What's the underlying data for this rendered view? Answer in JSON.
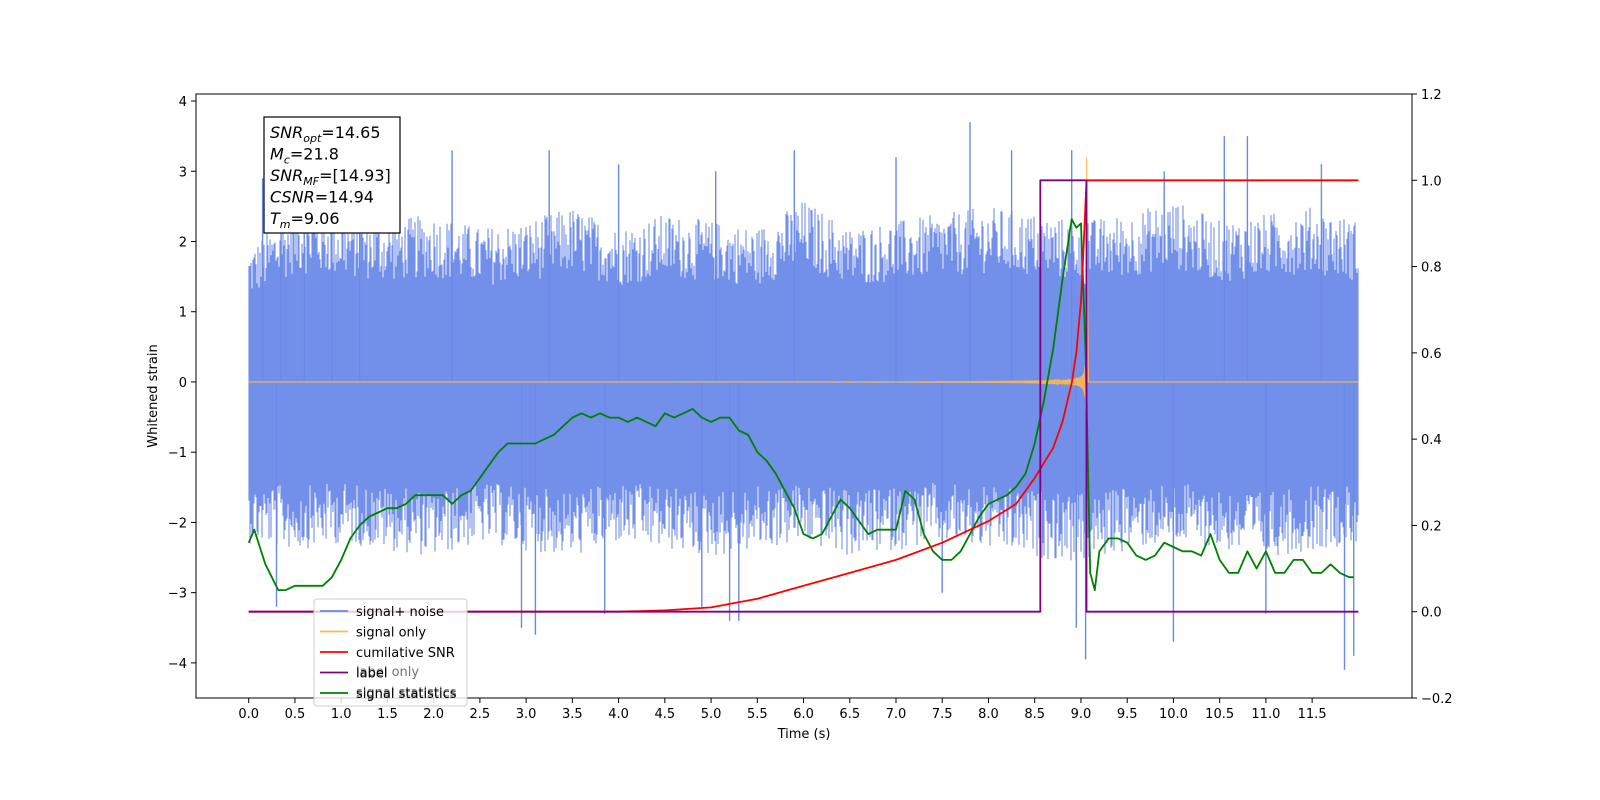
{
  "chart_data": {
    "type": "line",
    "xlabel": "Time (s)",
    "ylabel": "Whitened strain",
    "xlim": [
      -0.57,
      12.58
    ],
    "ylim": [
      -4.5,
      4.1
    ],
    "y2lim": [
      -0.2,
      1.2
    ],
    "x_ticks": [
      0.0,
      0.5,
      1.0,
      1.5,
      2.0,
      2.5,
      3.0,
      3.5,
      4.0,
      4.5,
      5.0,
      5.5,
      6.0,
      6.5,
      7.0,
      7.5,
      8.0,
      8.5,
      9.0,
      9.5,
      10.0,
      10.5,
      11.0,
      11.5
    ],
    "x_tick_labels": [
      "0.0",
      "0.5",
      "1.0",
      "1.5",
      "2.0",
      "2.5",
      "3.0",
      "3.5",
      "4.0",
      "4.5",
      "5.0",
      "5.5",
      "6.0",
      "6.5",
      "7.0",
      "7.5",
      "8.0",
      "8.5",
      "9.0",
      "9.5",
      "10.0",
      "10.5",
      "11.0",
      "11.5"
    ],
    "y_ticks": [
      4,
      3,
      2,
      1,
      0,
      -1,
      -2,
      -3,
      -4
    ],
    "y_tick_labels": [
      "4",
      "3",
      "2",
      "1",
      "0",
      "−1",
      "−2",
      "−3",
      "−4"
    ],
    "y2_ticks": [
      1.2,
      1.0,
      0.8,
      0.6,
      0.4,
      0.2,
      0.0,
      -0.2
    ],
    "y2_tick_labels": [
      "1.2",
      "1.0",
      "0.8",
      "0.6",
      "0.4",
      "0.2",
      "0.0",
      "−0.2"
    ],
    "grid": false,
    "legend_position": "lower-left",
    "legend": [
      {
        "label": "signal+ noise",
        "color": "#6a89e8"
      },
      {
        "label": "signal only",
        "color": "#ffb74d"
      },
      {
        "label": "cumilative SNR",
        "color": "#ff0000"
      },
      {
        "label": "label",
        "color": "#800080"
      },
      {
        "label": "signal statistics",
        "color": "#008000"
      }
    ],
    "legend_ghost_text": [
      "label only",
      "signal statistics"
    ],
    "annotation": {
      "lines": [
        {
          "base": "SNR",
          "sub": "opt",
          "value": "=14.65"
        },
        {
          "base": "M",
          "sub": "c",
          "value": "=21.8"
        },
        {
          "base": "SNR",
          "sub": "MF",
          "value": "=[14.93]"
        },
        {
          "base": "CSNR",
          "sub": "",
          "value": "=14.94"
        },
        {
          "base": "T",
          "sub": "m",
          "value": "=9.06"
        }
      ]
    },
    "series": [
      {
        "name": "signal+ noise",
        "axis": "left",
        "color": "#6a89e8",
        "x_range": [
          0.0,
          12.0
        ],
        "envelope_upper": [
          1.9,
          2.5,
          2.4,
          2.3,
          2.4,
          2.2,
          2.3,
          2.5,
          2.2,
          2.4,
          2.3,
          2.2,
          2.6,
          2.2,
          2.3,
          2.4,
          2.5,
          2.4,
          2.3,
          2.4,
          2.6,
          2.3,
          2.4,
          2.5,
          2.3
        ],
        "envelope_lower": [
          -2.3,
          -2.4,
          -2.3,
          -2.4,
          -2.5,
          -2.3,
          -2.4,
          -2.5,
          -2.3,
          -2.4,
          -2.5,
          -2.4,
          -2.3,
          -2.5,
          -2.4,
          -2.3,
          -2.4,
          -2.5,
          -2.6,
          -2.4,
          -2.3,
          -2.4,
          -2.5,
          -2.4,
          -2.3
        ],
        "spikes": [
          {
            "x": 0.15,
            "y": 2.9
          },
          {
            "x": 0.35,
            "y": 2.9
          },
          {
            "x": 0.6,
            "y": 3.0
          },
          {
            "x": 0.9,
            "y": 2.9
          },
          {
            "x": 1.2,
            "y": 3.1
          },
          {
            "x": 2.2,
            "y": 3.3
          },
          {
            "x": 3.25,
            "y": 3.3
          },
          {
            "x": 4.0,
            "y": 3.1
          },
          {
            "x": 5.05,
            "y": 3.0
          },
          {
            "x": 5.9,
            "y": 3.3
          },
          {
            "x": 7.0,
            "y": 3.2
          },
          {
            "x": 7.8,
            "y": 3.7
          },
          {
            "x": 8.25,
            "y": 3.3
          },
          {
            "x": 8.9,
            "y": 3.3
          },
          {
            "x": 9.9,
            "y": 3.0
          },
          {
            "x": 10.55,
            "y": 3.5
          },
          {
            "x": 10.8,
            "y": 3.5
          },
          {
            "x": 11.6,
            "y": 3.1
          },
          {
            "x": 0.3,
            "y": -3.2
          },
          {
            "x": 2.95,
            "y": -3.5
          },
          {
            "x": 3.1,
            "y": -3.6
          },
          {
            "x": 3.85,
            "y": -3.3
          },
          {
            "x": 4.9,
            "y": -3.2
          },
          {
            "x": 5.2,
            "y": -3.4
          },
          {
            "x": 5.3,
            "y": -3.4
          },
          {
            "x": 7.5,
            "y": -3.0
          },
          {
            "x": 8.95,
            "y": -3.5
          },
          {
            "x": 9.05,
            "y": -3.95
          },
          {
            "x": 10.0,
            "y": -3.7
          },
          {
            "x": 11.0,
            "y": -3.3
          },
          {
            "x": 11.85,
            "y": -4.1
          },
          {
            "x": 11.95,
            "y": -3.9
          }
        ]
      },
      {
        "name": "signal only",
        "axis": "left",
        "color": "#ffb74d",
        "x_range": [
          0.0,
          12.0
        ],
        "chirp_start": 4.5,
        "chirp_merger": 9.06,
        "chirp_peak": 3.2
      },
      {
        "name": "cumilative SNR",
        "axis": "right",
        "color": "#ff0000",
        "x": [
          0.0,
          4.0,
          4.5,
          5.0,
          5.5,
          6.0,
          6.5,
          7.0,
          7.5,
          8.0,
          8.3,
          8.5,
          8.7,
          8.8,
          8.9,
          8.95,
          9.0,
          9.03,
          9.06,
          12.0
        ],
        "y": [
          0.0,
          0.0,
          0.003,
          0.01,
          0.03,
          0.06,
          0.09,
          0.12,
          0.16,
          0.21,
          0.25,
          0.31,
          0.38,
          0.44,
          0.53,
          0.6,
          0.72,
          0.85,
          1.0,
          1.0
        ]
      },
      {
        "name": "label",
        "axis": "right",
        "color": "#800080",
        "x": [
          0.0,
          8.56,
          8.56,
          9.06,
          9.06,
          12.0
        ],
        "y": [
          0.0,
          0.0,
          1.0,
          1.0,
          0.0,
          0.0
        ]
      },
      {
        "name": "signal statistics",
        "axis": "right",
        "color": "#008000",
        "x": [
          0.0,
          0.06,
          0.12,
          0.18,
          0.25,
          0.32,
          0.4,
          0.5,
          0.6,
          0.7,
          0.8,
          0.9,
          1.0,
          1.1,
          1.2,
          1.3,
          1.4,
          1.5,
          1.6,
          1.7,
          1.8,
          1.9,
          2.0,
          2.1,
          2.2,
          2.3,
          2.4,
          2.5,
          2.6,
          2.7,
          2.8,
          2.9,
          3.0,
          3.1,
          3.2,
          3.3,
          3.4,
          3.5,
          3.6,
          3.7,
          3.8,
          3.9,
          4.0,
          4.1,
          4.2,
          4.3,
          4.4,
          4.5,
          4.6,
          4.7,
          4.8,
          4.9,
          5.0,
          5.1,
          5.2,
          5.3,
          5.4,
          5.5,
          5.6,
          5.7,
          5.8,
          5.9,
          6.0,
          6.1,
          6.2,
          6.3,
          6.4,
          6.5,
          6.6,
          6.7,
          6.8,
          6.9,
          7.0,
          7.1,
          7.2,
          7.3,
          7.4,
          7.5,
          7.6,
          7.7,
          7.8,
          7.9,
          8.0,
          8.1,
          8.2,
          8.3,
          8.4,
          8.5,
          8.6,
          8.7,
          8.8,
          8.9,
          8.95,
          9.0,
          9.05,
          9.1,
          9.15,
          9.2,
          9.3,
          9.4,
          9.5,
          9.6,
          9.7,
          9.8,
          9.9,
          10.0,
          10.1,
          10.2,
          10.3,
          10.4,
          10.5,
          10.6,
          10.7,
          10.8,
          10.9,
          11.0,
          11.1,
          11.2,
          11.3,
          11.4,
          11.5,
          11.6,
          11.7,
          11.8,
          11.9,
          11.95
        ],
        "y": [
          0.16,
          0.19,
          0.15,
          0.11,
          0.08,
          0.05,
          0.05,
          0.06,
          0.06,
          0.06,
          0.06,
          0.08,
          0.12,
          0.17,
          0.2,
          0.22,
          0.23,
          0.24,
          0.24,
          0.25,
          0.27,
          0.27,
          0.27,
          0.27,
          0.25,
          0.27,
          0.28,
          0.31,
          0.34,
          0.37,
          0.39,
          0.39,
          0.39,
          0.39,
          0.4,
          0.41,
          0.43,
          0.45,
          0.46,
          0.45,
          0.46,
          0.45,
          0.45,
          0.44,
          0.45,
          0.44,
          0.43,
          0.46,
          0.45,
          0.46,
          0.47,
          0.45,
          0.44,
          0.45,
          0.45,
          0.42,
          0.41,
          0.37,
          0.35,
          0.32,
          0.28,
          0.24,
          0.18,
          0.17,
          0.18,
          0.22,
          0.26,
          0.24,
          0.21,
          0.18,
          0.19,
          0.19,
          0.19,
          0.28,
          0.26,
          0.18,
          0.14,
          0.12,
          0.12,
          0.14,
          0.18,
          0.22,
          0.25,
          0.26,
          0.27,
          0.29,
          0.32,
          0.39,
          0.49,
          0.61,
          0.77,
          0.91,
          0.89,
          0.9,
          0.6,
          0.09,
          0.05,
          0.14,
          0.17,
          0.17,
          0.16,
          0.13,
          0.12,
          0.13,
          0.16,
          0.15,
          0.14,
          0.14,
          0.13,
          0.18,
          0.12,
          0.09,
          0.09,
          0.14,
          0.1,
          0.14,
          0.09,
          0.09,
          0.12,
          0.12,
          0.09,
          0.09,
          0.11,
          0.09,
          0.08,
          0.08
        ]
      }
    ]
  }
}
